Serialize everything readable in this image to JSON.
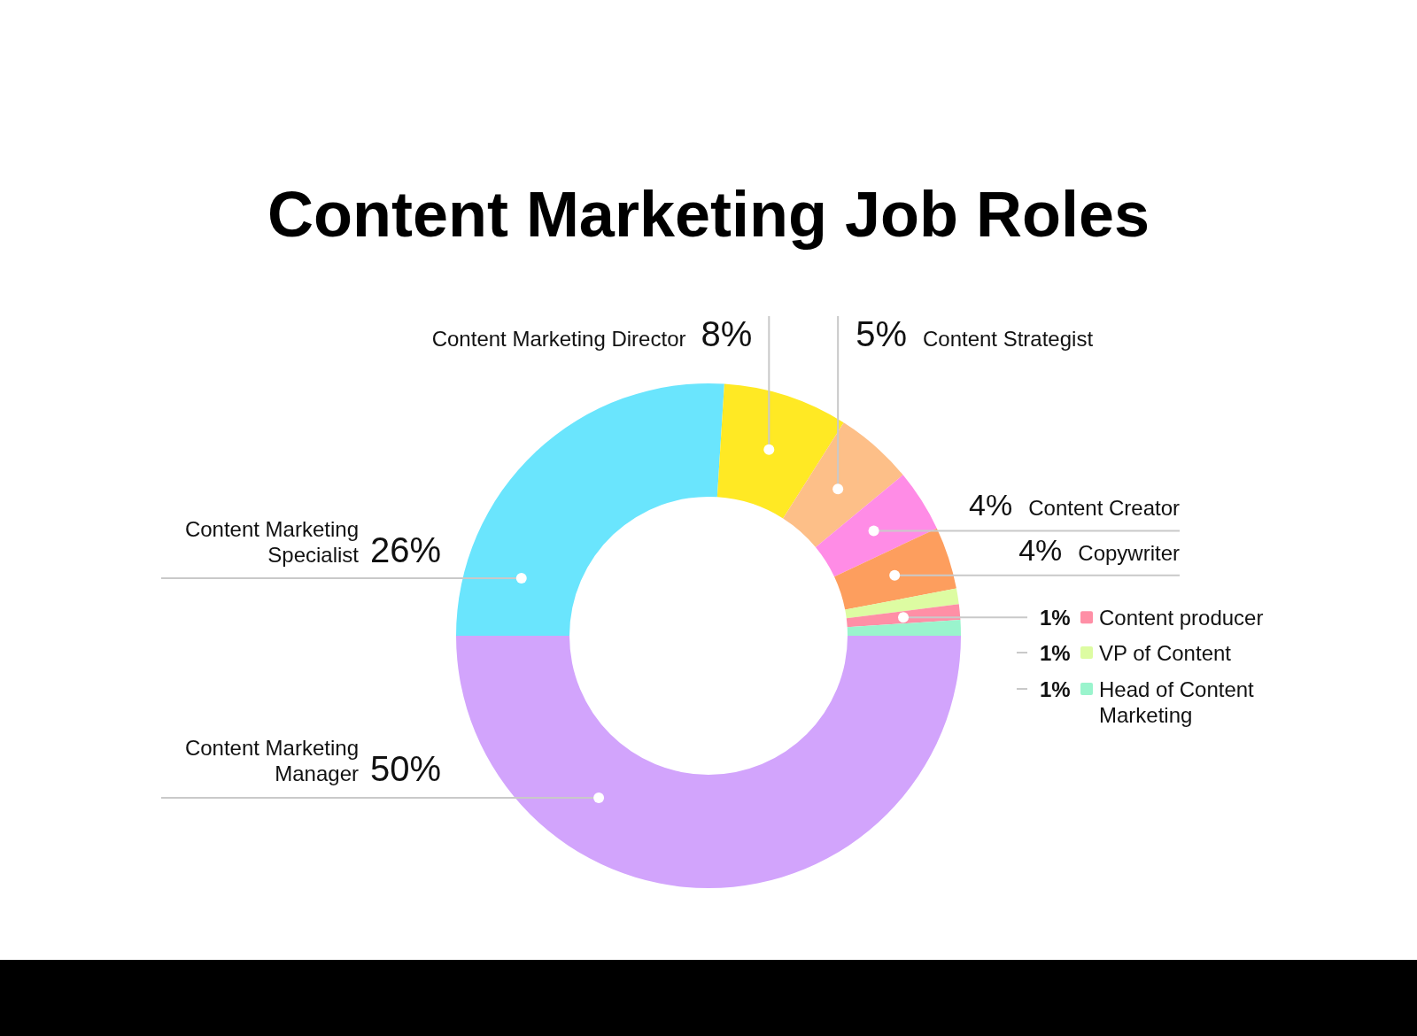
{
  "chart_data": {
    "type": "donut",
    "title": "Content Marketing Job Roles",
    "categories": [
      "Content Marketing Manager",
      "Content Marketing Specialist",
      "Content Marketing Director",
      "Content Strategist",
      "Content Creator",
      "Copywriter",
      "VP of Content",
      "Content producer",
      "Head of Content Marketing"
    ],
    "values": [
      50,
      26,
      8,
      5,
      4,
      4,
      1,
      1,
      1
    ],
    "colors": [
      "#d2a4fc",
      "#6ae5fd",
      "#ffe924",
      "#fdbf88",
      "#ff8ce6",
      "#fd9e5e",
      "#ddfca2",
      "#ff8fa6",
      "#9af4cd"
    ],
    "value_labels": [
      "50%",
      "26%",
      "8%",
      "5%",
      "4%",
      "4%",
      "1%",
      "1%",
      "1%"
    ],
    "legend": "right"
  }
}
